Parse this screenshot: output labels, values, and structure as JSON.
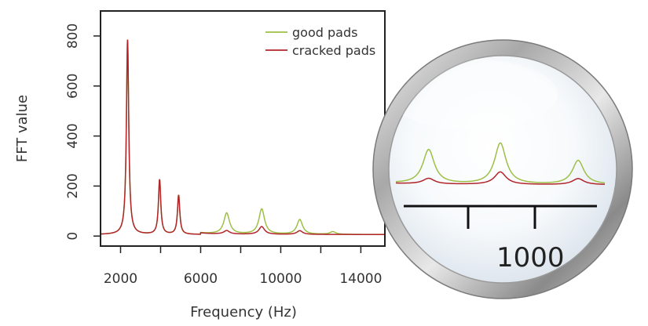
{
  "chart_data": {
    "type": "line",
    "title": "",
    "xlabel": "Frequency (Hz)",
    "ylabel": "FFT value",
    "xlim": [
      1000,
      15200
    ],
    "ylim": [
      -40,
      900
    ],
    "x_ticks": [
      2000,
      4000,
      6000,
      8000,
      10000,
      12000,
      14000
    ],
    "x_tick_labels": [
      "2000",
      "",
      "6000",
      "",
      "10000",
      "",
      "14000"
    ],
    "y_ticks": [
      0,
      200,
      400,
      600,
      800
    ],
    "y_tick_labels": [
      "0",
      "200",
      "400",
      "600",
      "800"
    ],
    "grid": false,
    "legend_position": "top-right",
    "series": [
      {
        "name": "good pads",
        "color": "#9dbf45",
        "baseline": 6,
        "peaks": [
          {
            "x": 2350,
            "y": 780
          },
          {
            "x": 3950,
            "y": 220
          },
          {
            "x": 4900,
            "y": 158
          },
          {
            "x": 7300,
            "y": 85
          },
          {
            "x": 9050,
            "y": 102
          },
          {
            "x": 10950,
            "y": 60
          },
          {
            "x": 12600,
            "y": 12
          }
        ]
      },
      {
        "name": "cracked pads",
        "color": "#b0242a",
        "baseline": 6,
        "peaks": [
          {
            "x": 2350,
            "y": 780
          },
          {
            "x": 3950,
            "y": 220
          },
          {
            "x": 4900,
            "y": 158
          },
          {
            "x": 7300,
            "y": 15
          },
          {
            "x": 9050,
            "y": 32
          },
          {
            "x": 10950,
            "y": 16
          }
        ]
      }
    ]
  },
  "magnifier": {
    "axis_label": "1000"
  }
}
